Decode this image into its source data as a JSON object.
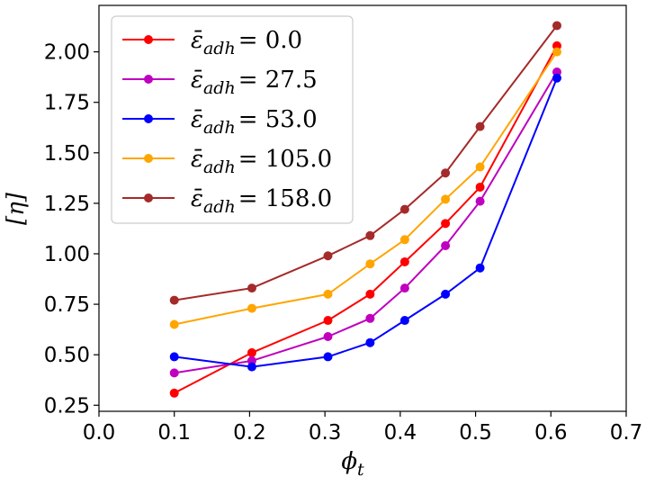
{
  "chart_data": {
    "type": "line",
    "xlabel": "ϕ",
    "xlabel_sub": "t",
    "ylabel": "[η]",
    "xlim": [
      0.0,
      0.7
    ],
    "ylim": [
      0.22,
      2.23
    ],
    "xticks": [
      "0.0",
      "0.1",
      "0.2",
      "0.3",
      "0.4",
      "0.5",
      "0.6",
      "0.7"
    ],
    "yticks": [
      "0.25",
      "0.50",
      "0.75",
      "1.00",
      "1.25",
      "1.50",
      "1.75",
      "2.00"
    ],
    "grid": false,
    "legend_position": "upper-left",
    "series": [
      {
        "name": "ε̄_adh = 0.0",
        "symbol": "ε̄",
        "sub": "adh",
        "value": "= 0.0",
        "color": "#ff0000",
        "x": [
          0.1,
          0.203,
          0.304,
          0.36,
          0.406,
          0.46,
          0.506,
          0.608
        ],
        "y": [
          0.31,
          0.51,
          0.67,
          0.8,
          0.96,
          1.15,
          1.33,
          2.03
        ]
      },
      {
        "name": "ε̄_adh = 27.5",
        "symbol": "ε̄",
        "sub": "adh",
        "value": "= 27.5",
        "color": "#bf00bf",
        "x": [
          0.1,
          0.203,
          0.304,
          0.36,
          0.406,
          0.46,
          0.506,
          0.608
        ],
        "y": [
          0.41,
          0.47,
          0.59,
          0.68,
          0.83,
          1.04,
          1.26,
          1.9
        ]
      },
      {
        "name": "ε̄_adh = 53.0",
        "symbol": "ε̄",
        "sub": "adh",
        "value": "= 53.0",
        "color": "#0000ff",
        "x": [
          0.1,
          0.203,
          0.304,
          0.36,
          0.406,
          0.46,
          0.506,
          0.608
        ],
        "y": [
          0.49,
          0.44,
          0.49,
          0.56,
          0.67,
          0.8,
          0.93,
          1.87
        ]
      },
      {
        "name": "ε̄_adh = 105.0",
        "symbol": "ε̄",
        "sub": "adh",
        "value": "= 105.0",
        "color": "#ffa500",
        "x": [
          0.1,
          0.203,
          0.304,
          0.36,
          0.406,
          0.46,
          0.506,
          0.608
        ],
        "y": [
          0.65,
          0.73,
          0.8,
          0.95,
          1.07,
          1.27,
          1.43,
          2.0
        ]
      },
      {
        "name": "ε̄_adh = 158.0",
        "symbol": "ε̄",
        "sub": "adh",
        "value": "= 158.0",
        "color": "#a52a2a",
        "x": [
          0.1,
          0.203,
          0.304,
          0.36,
          0.406,
          0.46,
          0.506,
          0.608
        ],
        "y": [
          0.77,
          0.83,
          0.99,
          1.09,
          1.22,
          1.4,
          1.63,
          2.13
        ]
      }
    ]
  }
}
